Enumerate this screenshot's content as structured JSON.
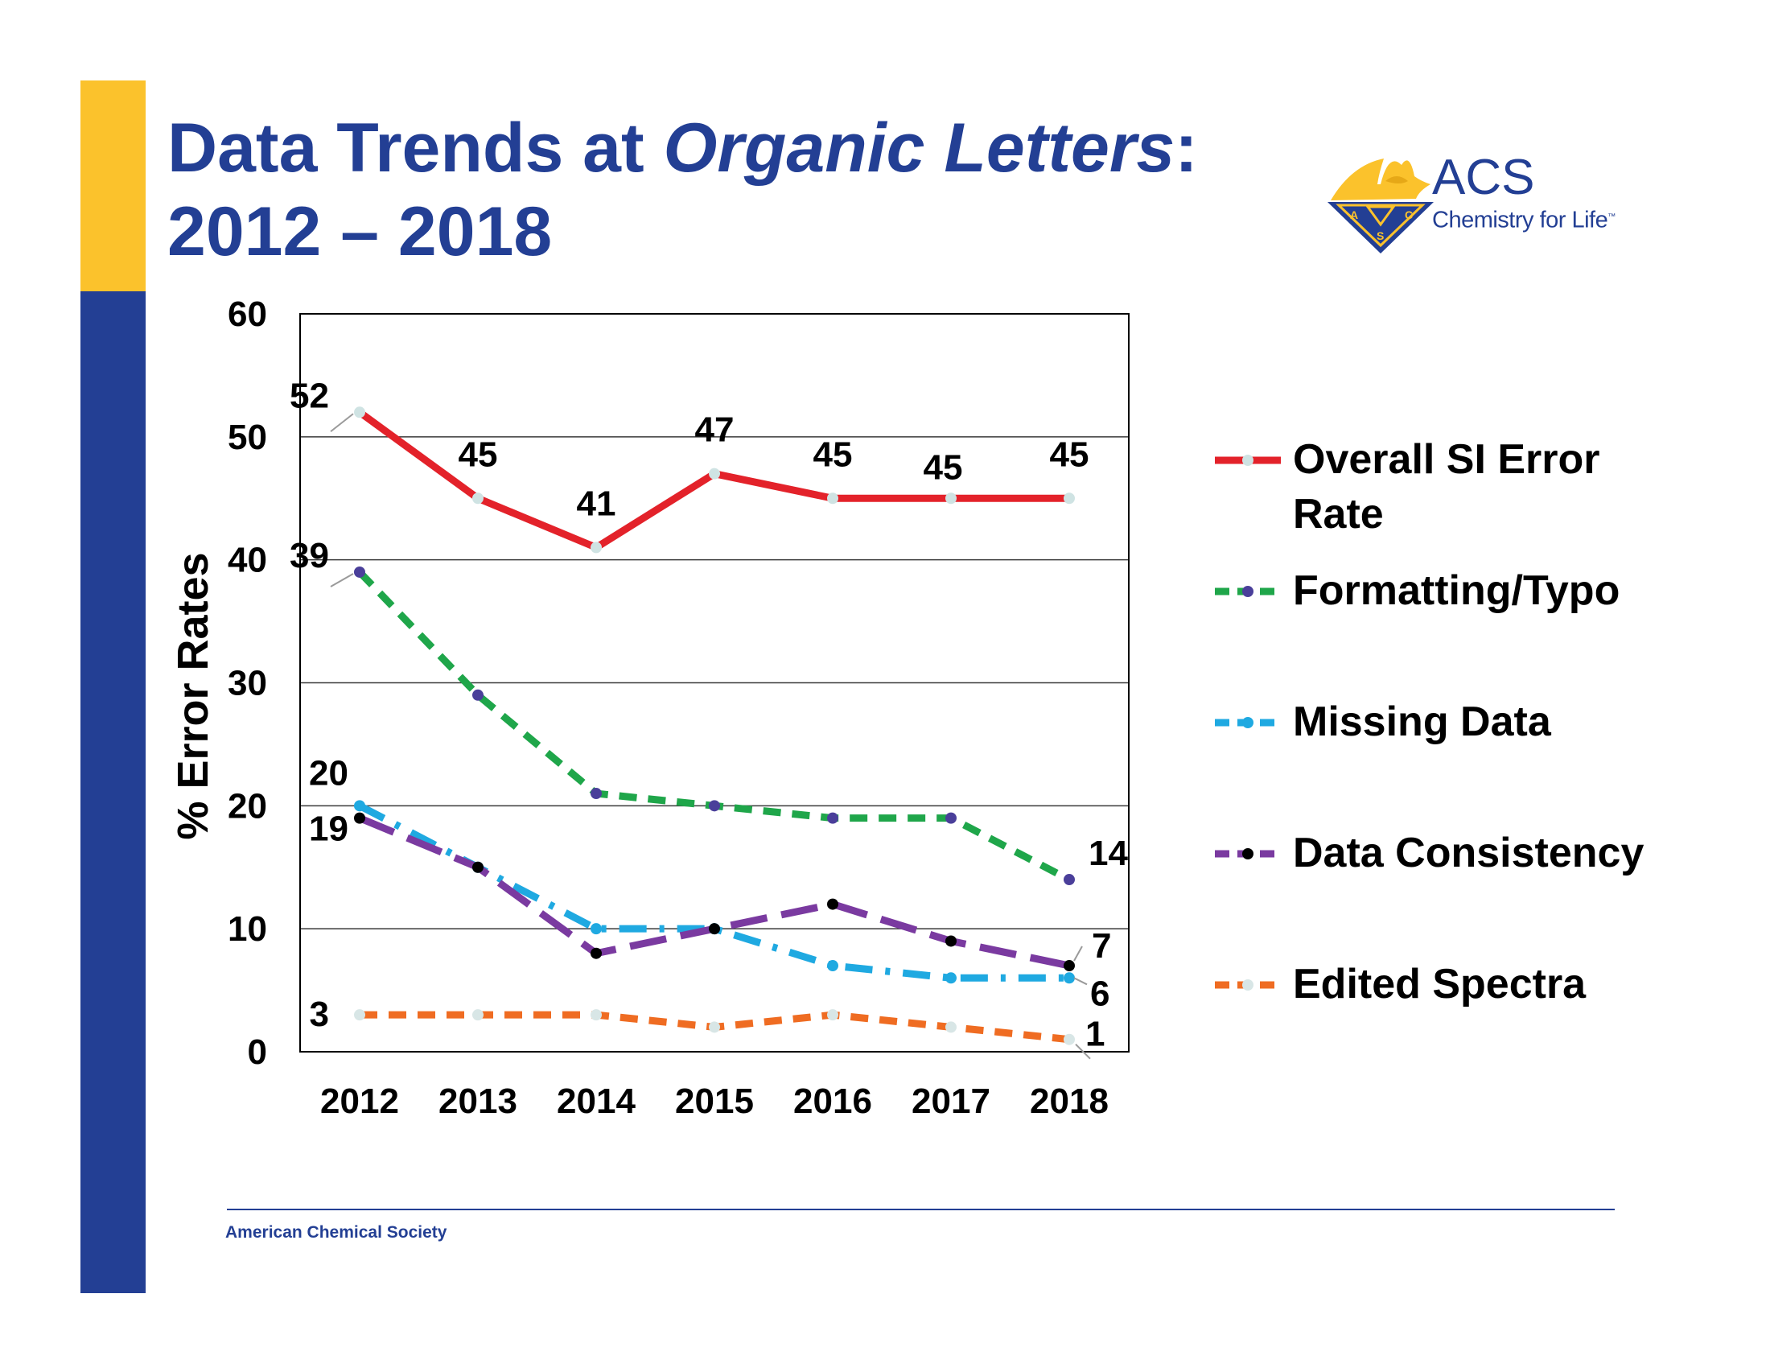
{
  "slide": {
    "title_part1": "Data Trends at ",
    "title_italic": "Organic Letters",
    "title_part2": ":",
    "title_line2": "2012 – 2018",
    "footer": "American Chemical Society"
  },
  "logo": {
    "brand": "ACS",
    "tagline": "Chemistry for Life",
    "trademark": "™",
    "seal_letters": [
      "A",
      "C",
      "S"
    ],
    "icon": "acs-eagle-seal-icon"
  },
  "colors": {
    "brand_blue": "#233f94",
    "brand_yellow": "#fbc22c"
  },
  "chart_data": {
    "type": "line",
    "title": "",
    "xlabel": "",
    "ylabel": "% Error Rates",
    "ylim": [
      0,
      60
    ],
    "yticks": [
      0,
      10,
      20,
      30,
      40,
      50,
      60
    ],
    "grid": true,
    "legend_position": "right",
    "categories": [
      "2012",
      "2013",
      "2014",
      "2015",
      "2016",
      "2017",
      "2018"
    ],
    "series": [
      {
        "name": "Overall SI Error Rate",
        "values": [
          52,
          45,
          41,
          47,
          45,
          45,
          45
        ],
        "color": "#e3222a",
        "marker_color": "#cfe3e3",
        "dash": "solid",
        "labels": [
          "52",
          "45",
          "41",
          "47",
          "45",
          "45",
          "45"
        ]
      },
      {
        "name": "Formatting/Typo",
        "values": [
          39,
          29,
          21,
          20,
          19,
          19,
          14
        ],
        "color": "#1fa64a",
        "marker_color": "#4a3f9a",
        "dash": "dash",
        "labels": [
          "39",
          "",
          "",
          "",
          "",
          "",
          "14"
        ]
      },
      {
        "name": "Missing Data",
        "values": [
          20,
          15,
          10,
          10,
          7,
          6,
          6
        ],
        "color": "#1fa9e1",
        "marker_color": "#1fa9e1",
        "dash": "dashdot",
        "labels": [
          "20",
          "",
          "",
          "",
          "",
          "",
          "6"
        ]
      },
      {
        "name": "Data Consistency",
        "values": [
          19,
          15,
          8,
          10,
          12,
          9,
          7
        ],
        "color": "#7a3aa0",
        "marker_color": "#000000",
        "dash": "longdash",
        "labels": [
          "19",
          "",
          "",
          "",
          "",
          "",
          "7"
        ]
      },
      {
        "name": "Edited Spectra",
        "values": [
          3,
          3,
          3,
          2,
          3,
          2,
          1
        ],
        "color": "#ef6c22",
        "marker_color": "#d8e6e6",
        "dash": "dash",
        "labels": [
          "3",
          "",
          "",
          "",
          "",
          "",
          "1"
        ]
      }
    ]
  }
}
